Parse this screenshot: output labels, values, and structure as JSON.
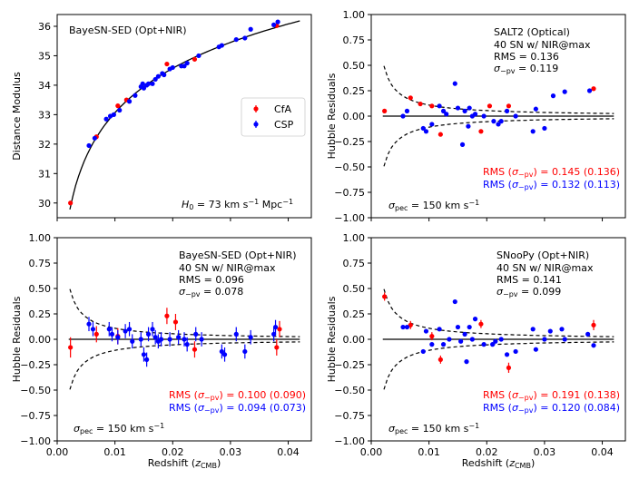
{
  "figure": {
    "xlabel_main": "Redshift (",
    "xlabel_sym": "z",
    "xlabel_sub": "CMB",
    "xlabel_end": ")"
  },
  "chart_data": [
    {
      "id": "hubble",
      "type": "scatter",
      "title": "BayeSN-SED (Opt+NIR)",
      "xlabel": "",
      "ylabel": "Distance Modulus",
      "xlim": [
        0.0,
        0.044
      ],
      "ylim": [
        29.5,
        36.4
      ],
      "yticks": [
        "30",
        "31",
        "32",
        "33",
        "34",
        "35",
        "36"
      ],
      "ytick_values": [
        30,
        31,
        32,
        33,
        34,
        35,
        36
      ],
      "xticks": [],
      "annotation": "H0 = 73 km s^-1 Mpc^-1",
      "annotation_parts": {
        "sym": "H",
        "sub": "0",
        "rest": " = 73 km s",
        "sup1": "−1",
        "mid": " Mpc",
        "sup2": "−1"
      },
      "legend": [
        {
          "label": "CfA",
          "color": "#ff0000"
        },
        {
          "label": "CSP",
          "color": "#0000ff"
        }
      ],
      "curve": {
        "H0": 73
      },
      "series": [
        {
          "name": "CfA",
          "color": "#ff0000",
          "x": [
            0.0023,
            0.0068,
            0.0105,
            0.012,
            0.019,
            0.0238,
            0.038
          ],
          "y": [
            30.0,
            32.25,
            33.3,
            33.5,
            34.72,
            34.88,
            36.02
          ]
        },
        {
          "name": "CSP",
          "color": "#0000ff",
          "x": [
            0.0055,
            0.0065,
            0.0085,
            0.0092,
            0.0098,
            0.0108,
            0.0125,
            0.0135,
            0.0145,
            0.0148,
            0.015,
            0.0155,
            0.0158,
            0.0165,
            0.017,
            0.0175,
            0.0182,
            0.0185,
            0.0195,
            0.02,
            0.0215,
            0.022,
            0.0225,
            0.0245,
            0.028,
            0.0285,
            0.031,
            0.0325,
            0.0335,
            0.0375,
            0.0382
          ],
          "y": [
            31.95,
            32.2,
            32.85,
            32.95,
            33.0,
            33.15,
            33.45,
            33.65,
            33.95,
            34.05,
            33.9,
            34.0,
            34.05,
            34.05,
            34.2,
            34.3,
            34.4,
            34.35,
            34.55,
            34.6,
            34.65,
            34.65,
            34.75,
            35.0,
            35.3,
            35.35,
            35.55,
            35.6,
            35.9,
            36.05,
            36.15
          ]
        }
      ]
    },
    {
      "id": "salt2",
      "type": "scatter",
      "text_lines": [
        "SALT2 (Optical)",
        "40 SN w/ NIR@max",
        "RMS = 0.136"
      ],
      "sigma_line": {
        "sym": "σ",
        "sub": "−pv",
        "rest": " = 0.119"
      },
      "ylabel": "Hubble Residuals",
      "xlim": [
        0.0,
        0.044
      ],
      "ylim": [
        -1.0,
        1.0
      ],
      "yticks": [
        "1.00",
        "0.75",
        "0.50",
        "0.25",
        "0.00",
        "−0.25",
        "−0.50",
        "−0.75",
        "−1.00"
      ],
      "ytick_values": [
        1.0,
        0.75,
        0.5,
        0.25,
        0.0,
        -0.25,
        -0.5,
        -0.75,
        -1.0
      ],
      "rms_red": {
        "pre": "RMS (",
        "sym": "σ",
        "sub": "−pv",
        "post": ") = 0.145 (0.136)"
      },
      "rms_blue": {
        "pre": "RMS (",
        "sym": "σ",
        "sub": "−pv",
        "post": ") = 0.132 (0.113)"
      },
      "sigma_pec": {
        "sym": "σ",
        "sub": "pec",
        "rest": " = 150 km s",
        "sup": "−1"
      },
      "series": [
        {
          "name": "CfA",
          "color": "#ff0000",
          "x": [
            0.0023,
            0.0068,
            0.0085,
            0.0105,
            0.012,
            0.019,
            0.0205,
            0.0238,
            0.0385
          ],
          "y": [
            0.05,
            0.18,
            0.12,
            0.1,
            -0.18,
            -0.15,
            0.1,
            0.1,
            0.27
          ]
        },
        {
          "name": "CSP",
          "color": "#0000ff",
          "x": [
            0.0055,
            0.0062,
            0.009,
            0.0095,
            0.0105,
            0.0118,
            0.0125,
            0.013,
            0.0145,
            0.015,
            0.0158,
            0.0162,
            0.0168,
            0.017,
            0.0175,
            0.018,
            0.0195,
            0.0212,
            0.022,
            0.0225,
            0.0235,
            0.025,
            0.028,
            0.0285,
            0.03,
            0.0315,
            0.0335,
            0.0378
          ],
          "y": [
            0.0,
            0.05,
            -0.12,
            -0.15,
            -0.08,
            0.1,
            0.05,
            0.02,
            0.32,
            0.08,
            -0.28,
            0.05,
            -0.1,
            0.08,
            0.0,
            0.02,
            0.0,
            -0.05,
            -0.08,
            -0.05,
            0.05,
            0.0,
            -0.15,
            0.07,
            -0.12,
            0.2,
            0.24,
            0.25
          ]
        }
      ]
    },
    {
      "id": "bayesn",
      "type": "scatter",
      "text_lines": [
        "BayeSN-SED (Opt+NIR)",
        "40 SN w/ NIR@max",
        "RMS = 0.096"
      ],
      "sigma_line": {
        "sym": "σ",
        "sub": "−pv",
        "rest": " = 0.078"
      },
      "ylabel": "Hubble Residuals",
      "xlim": [
        0.0,
        0.044
      ],
      "ylim": [
        -1.0,
        1.0
      ],
      "yticks": [
        "1.00",
        "0.75",
        "0.50",
        "0.25",
        "0.00",
        "−0.25",
        "−0.50",
        "−0.75",
        "−1.00"
      ],
      "ytick_values": [
        1.0,
        0.75,
        0.5,
        0.25,
        0.0,
        -0.25,
        -0.5,
        -0.75,
        -1.0
      ],
      "xticks": [
        "0.00",
        "0.01",
        "0.02",
        "0.03",
        "0.04"
      ],
      "xtick_values": [
        0.0,
        0.01,
        0.02,
        0.03,
        0.04
      ],
      "rms_red": {
        "pre": "RMS (",
        "sym": "σ",
        "sub": "−pv",
        "post": ") = 0.100 (0.090)"
      },
      "rms_blue": {
        "pre": "RMS (",
        "sym": "σ",
        "sub": "−pv",
        "post": ") = 0.094 (0.073)"
      },
      "sigma_pec": {
        "sym": "σ",
        "sub": "pec",
        "rest": " = 150 km s",
        "sup": "−1"
      },
      "series": [
        {
          "name": "CfA",
          "color": "#ff0000",
          "x": [
            0.0023,
            0.0068,
            0.0105,
            0.019,
            0.0205,
            0.0238,
            0.038,
            0.0385
          ],
          "y": [
            -0.08,
            0.05,
            0.03,
            0.23,
            0.17,
            -0.1,
            -0.08,
            0.1
          ],
          "err": [
            0.1,
            0.08,
            0.08,
            0.08,
            0.08,
            0.08,
            0.08,
            0.08
          ]
        },
        {
          "name": "CSP",
          "color": "#0000ff",
          "x": [
            0.0055,
            0.0062,
            0.009,
            0.0095,
            0.0105,
            0.0118,
            0.0125,
            0.013,
            0.0145,
            0.015,
            0.0155,
            0.0158,
            0.0165,
            0.017,
            0.0175,
            0.018,
            0.0195,
            0.021,
            0.022,
            0.0225,
            0.024,
            0.025,
            0.0285,
            0.029,
            0.031,
            0.0325,
            0.0335,
            0.0375,
            0.0378
          ],
          "y": [
            0.15,
            0.1,
            0.1,
            0.05,
            0.02,
            0.08,
            0.1,
            -0.02,
            0.0,
            -0.15,
            -0.2,
            0.05,
            0.1,
            0.02,
            -0.02,
            0.0,
            0.0,
            0.02,
            0.0,
            -0.05,
            0.05,
            0.0,
            -0.12,
            -0.15,
            0.05,
            -0.12,
            0.02,
            0.05,
            0.12
          ],
          "err": [
            0.07,
            0.07,
            0.07,
            0.07,
            0.07,
            0.07,
            0.07,
            0.07,
            0.07,
            0.07,
            0.07,
            0.07,
            0.07,
            0.07,
            0.07,
            0.07,
            0.07,
            0.07,
            0.07,
            0.07,
            0.07,
            0.07,
            0.07,
            0.07,
            0.07,
            0.07,
            0.07,
            0.07,
            0.07
          ]
        }
      ]
    },
    {
      "id": "snoopy",
      "type": "scatter",
      "text_lines": [
        "SNooPy (Opt+NIR)",
        "40 SN w/ NIR@max",
        "RMS = 0.141"
      ],
      "sigma_line": {
        "sym": "σ",
        "sub": "−pv",
        "rest": " = 0.099"
      },
      "ylabel": "Hubble Residuals",
      "xlim": [
        0.0,
        0.044
      ],
      "ylim": [
        -1.0,
        1.0
      ],
      "yticks": [
        "1.00",
        "0.75",
        "0.50",
        "0.25",
        "0.00",
        "−0.25",
        "−0.50",
        "−0.75",
        "−1.00"
      ],
      "ytick_values": [
        1.0,
        0.75,
        0.5,
        0.25,
        0.0,
        -0.25,
        -0.5,
        -0.75,
        -1.0
      ],
      "xticks": [
        "0.00",
        "0.01",
        "0.02",
        "0.03",
        "0.04"
      ],
      "xtick_values": [
        0.0,
        0.01,
        0.02,
        0.03,
        0.04
      ],
      "rms_red": {
        "pre": "RMS (",
        "sym": "σ",
        "sub": "−pv",
        "post": ") = 0.191 (0.138)"
      },
      "rms_blue": {
        "pre": "RMS (",
        "sym": "σ",
        "sub": "−pv",
        "post": ") = 0.120 (0.084)"
      },
      "sigma_pec": {
        "sym": "σ",
        "sub": "pec",
        "rest": " = 150 km s",
        "sup": "−1"
      },
      "series": [
        {
          "name": "CfA",
          "color": "#ff0000",
          "x": [
            0.0023,
            0.0068,
            0.0105,
            0.012,
            0.019,
            0.0238,
            0.0385
          ],
          "y": [
            0.42,
            0.14,
            0.03,
            -0.2,
            0.15,
            -0.28,
            0.14
          ],
          "err": [
            0.04,
            0.04,
            0.04,
            0.04,
            0.04,
            0.05,
            0.05
          ]
        },
        {
          "name": "CSP",
          "color": "#0000ff",
          "x": [
            0.0055,
            0.0062,
            0.009,
            0.0095,
            0.0105,
            0.0118,
            0.0125,
            0.0135,
            0.0145,
            0.015,
            0.0155,
            0.0162,
            0.0165,
            0.017,
            0.0175,
            0.018,
            0.0195,
            0.021,
            0.0215,
            0.0225,
            0.0235,
            0.025,
            0.028,
            0.0285,
            0.03,
            0.031,
            0.033,
            0.0335,
            0.0375,
            0.0385
          ],
          "y": [
            0.12,
            0.12,
            -0.12,
            0.08,
            -0.05,
            0.1,
            -0.05,
            0.0,
            0.37,
            0.12,
            -0.02,
            0.05,
            -0.22,
            0.12,
            0.0,
            0.2,
            -0.05,
            -0.05,
            -0.02,
            0.0,
            -0.15,
            -0.12,
            0.1,
            -0.1,
            0.0,
            0.08,
            0.1,
            0.0,
            0.05,
            -0.06
          ]
        }
      ]
    }
  ]
}
